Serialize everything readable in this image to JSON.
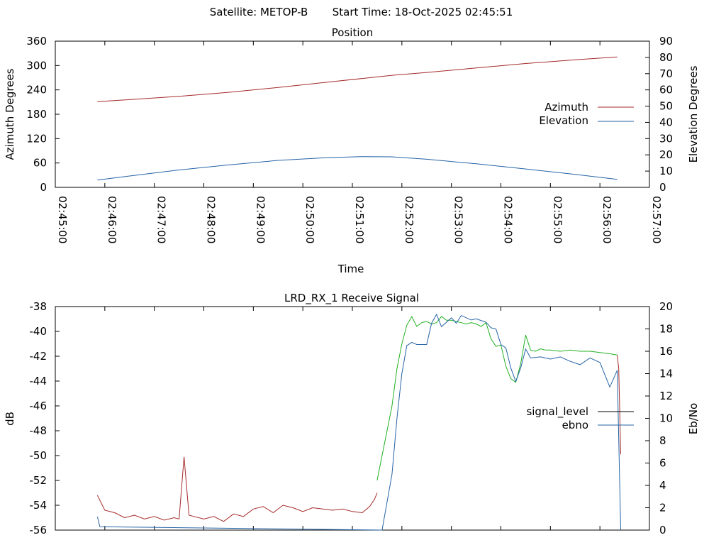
{
  "header": {
    "satellite_text": "Satellite: METOP-B",
    "start_time_text": "Start Time: 18-Oct-2025 02:45:51"
  },
  "chart_data": [
    {
      "type": "line",
      "title": "Position",
      "xlabel": "Time",
      "x_tick_labels": [
        "02:45:00",
        "02:46:00",
        "02:47:00",
        "02:48:00",
        "02:49:00",
        "02:50:00",
        "02:51:00",
        "02:52:00",
        "02:53:00",
        "02:54:00",
        "02:55:00",
        "02:56:00",
        "02:57:00"
      ],
      "x_unit": "minutes after 02:45:00",
      "xlim": [
        0,
        12
      ],
      "y_left": {
        "label": "Azimuth Degrees",
        "ticks": [
          "0",
          "60",
          "120",
          "180",
          "240",
          "300",
          "360"
        ],
        "ylim": [
          0,
          360
        ]
      },
      "y_right": {
        "label": "Elevation Degrees",
        "ticks": [
          "0",
          "10",
          "20",
          "30",
          "40",
          "50",
          "60",
          "70",
          "80",
          "90"
        ],
        "ylim": [
          0,
          90
        ]
      },
      "legend_position": "right",
      "series": [
        {
          "name": "Azimuth",
          "axis": "left",
          "color": "#a52a2a",
          "x": [
            0.85,
            1.5,
            2.5,
            3.5,
            4.5,
            5.5,
            6.2,
            6.8,
            7.5,
            8.5,
            9.5,
            10.5,
            11.35
          ],
          "y": [
            211,
            216,
            224,
            234,
            246,
            259,
            268,
            276,
            283,
            294,
            305,
            314,
            321
          ]
        },
        {
          "name": "Elevation",
          "axis": "right",
          "color": "#2563a6",
          "x": [
            0.85,
            1.5,
            2.5,
            3.5,
            4.5,
            5.5,
            6.2,
            6.8,
            7.5,
            8.5,
            9.5,
            10.5,
            11.35
          ],
          "y": [
            4.5,
            7,
            10.7,
            13.8,
            16.6,
            18.3,
            18.9,
            18.8,
            17.3,
            14.5,
            11.3,
            8.0,
            4.9
          ]
        }
      ]
    },
    {
      "type": "line",
      "title": "LRD_RX_1 Receive Signal",
      "x_unit": "minutes after 02:45:00",
      "xlim": [
        0,
        12
      ],
      "y_left": {
        "label": "dB",
        "ticks": [
          "-56",
          "-54",
          "-52",
          "-50",
          "-48",
          "-46",
          "-44",
          "-42",
          "-40",
          "-38"
        ],
        "ylim": [
          -56,
          -38
        ]
      },
      "y_right": {
        "label": "Eb/No",
        "ticks": [
          "0",
          "2",
          "4",
          "6",
          "8",
          "10",
          "12",
          "14",
          "16",
          "18",
          "20"
        ],
        "ylim": [
          0,
          20
        ]
      },
      "legend_position": "right",
      "series": [
        {
          "name": "signal_level",
          "axis": "left",
          "color": "#000000",
          "segments": [
            {
              "color": "#a52a2a",
              "x": [
                0.85,
                1.0,
                1.2,
                1.4,
                1.6,
                1.8,
                2.0,
                2.2,
                2.4,
                2.5,
                2.6,
                2.7,
                2.8,
                3.0,
                3.2,
                3.4,
                3.6,
                3.8,
                4.0,
                4.2,
                4.4,
                4.6,
                4.8,
                5.0,
                5.2,
                5.4,
                5.6,
                5.8,
                6.0,
                6.2,
                6.35,
                6.45,
                6.5
              ],
              "y": [
                -53.2,
                -54.4,
                -54.6,
                -55.0,
                -54.8,
                -55.1,
                -54.9,
                -55.2,
                -55.0,
                -55.1,
                -50.1,
                -54.8,
                -54.9,
                -55.1,
                -54.9,
                -55.3,
                -54.7,
                -54.9,
                -54.3,
                -54.1,
                -54.6,
                -54.0,
                -54.2,
                -54.5,
                -54.2,
                -54.3,
                -54.4,
                -54.3,
                -54.5,
                -54.6,
                -54.1,
                -53.5,
                -53.0
              ]
            },
            {
              "color": "#22b022",
              "x": [
                6.5,
                6.6,
                6.7,
                6.8,
                6.9,
                7.0,
                7.1,
                7.2,
                7.3,
                7.4,
                7.5,
                7.6,
                7.7,
                7.8,
                7.9,
                8.0,
                8.1,
                8.2,
                8.3,
                8.4,
                8.5,
                8.6,
                8.7,
                8.8,
                8.9,
                9.0,
                9.1,
                9.2,
                9.3,
                9.4,
                9.5,
                9.6,
                9.7,
                9.8,
                9.9,
                10.0,
                10.2,
                10.4,
                10.6,
                10.8,
                11.0,
                11.2,
                11.35
              ],
              "y": [
                -52.0,
                -50.0,
                -48.0,
                -46.0,
                -43.0,
                -41.0,
                -39.5,
                -38.8,
                -39.6,
                -39.3,
                -39.2,
                -39.4,
                -39.3,
                -38.8,
                -39.1,
                -39.1,
                -39.2,
                -39.3,
                -39.4,
                -39.3,
                -39.4,
                -39.6,
                -39.3,
                -40.6,
                -41.2,
                -41.1,
                -42.8,
                -43.8,
                -44.1,
                -42.6,
                -40.3,
                -41.5,
                -41.6,
                -41.4,
                -41.5,
                -41.5,
                -41.6,
                -41.5,
                -41.6,
                -41.6,
                -41.7,
                -41.8,
                -41.9
              ]
            },
            {
              "color": "#a52a2a",
              "x": [
                11.35,
                11.38,
                11.42
              ],
              "y": [
                -41.9,
                -43.0,
                -49.9
              ]
            }
          ]
        },
        {
          "name": "ebno",
          "axis": "right",
          "color": "#2563a6",
          "x": [
            0.85,
            0.9,
            6.6,
            6.8,
            6.9,
            7.0,
            7.1,
            7.2,
            7.3,
            7.5,
            7.6,
            7.7,
            7.8,
            8.0,
            8.1,
            8.2,
            8.4,
            8.5,
            8.7,
            8.8,
            8.9,
            9.0,
            9.1,
            9.2,
            9.3,
            9.4,
            9.5,
            9.6,
            9.8,
            10.0,
            10.2,
            10.4,
            10.6,
            10.8,
            11.0,
            11.2,
            11.35,
            11.42
          ],
          "y": [
            1.2,
            0.3,
            0.0,
            5.0,
            10.0,
            14.0,
            16.5,
            16.8,
            16.6,
            16.6,
            18.5,
            19.3,
            18.2,
            19.0,
            18.5,
            19.2,
            18.8,
            18.9,
            18.6,
            18.1,
            18.0,
            16.6,
            16.3,
            14.5,
            13.3,
            14.5,
            16.2,
            15.4,
            15.5,
            15.3,
            15.5,
            15.1,
            14.8,
            15.4,
            15.0,
            12.8,
            14.3,
            0.0
          ]
        }
      ]
    }
  ]
}
